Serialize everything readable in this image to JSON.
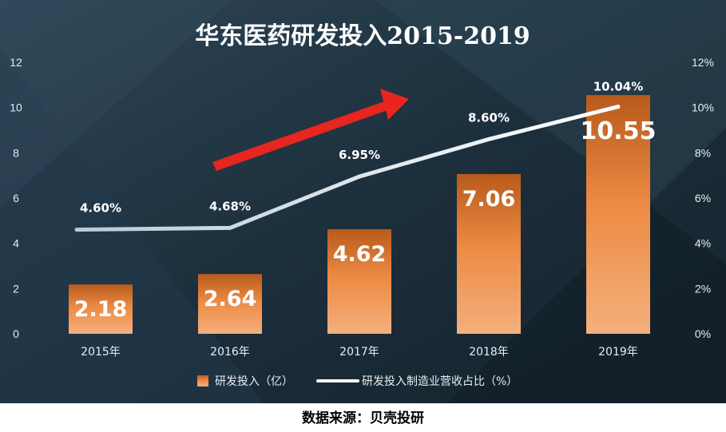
{
  "chart_data": {
    "type": "bar",
    "title": "华东医药研发投入2015-2019",
    "categories": [
      "2015年",
      "2016年",
      "2017年",
      "2018年",
      "2019年"
    ],
    "series": [
      {
        "name": "研发投入（亿）",
        "kind": "bar",
        "axis": "left",
        "values": [
          2.18,
          2.64,
          4.62,
          7.06,
          10.55
        ],
        "labels": [
          "2.18",
          "2.64",
          "4.62",
          "7.06",
          "10.55"
        ]
      },
      {
        "name": "研发投入制造业营收占比（%）",
        "kind": "line",
        "axis": "right",
        "values": [
          4.6,
          4.68,
          6.95,
          8.6,
          10.04
        ],
        "labels": [
          "4.60%",
          "4.68%",
          "6.95%",
          "8.60%",
          "10.04%"
        ]
      }
    ],
    "y_left": {
      "ylim": [
        0,
        12
      ],
      "ticks": [
        "0",
        "2",
        "4",
        "6",
        "8",
        "10",
        "12"
      ]
    },
    "y_right": {
      "ylim": [
        0,
        12
      ],
      "ticks": [
        "0%",
        "2%",
        "4%",
        "6%",
        "8%",
        "10%",
        "12%"
      ]
    },
    "grid": false,
    "legend_position": "bottom",
    "colors": {
      "bar_top": "#b85a1c",
      "bar_bottom": "#f4b07c",
      "line": "#ffffff",
      "arrow": "#e8251f",
      "background": "#1f3444"
    }
  },
  "source_note": "数据来源：贝壳投研"
}
